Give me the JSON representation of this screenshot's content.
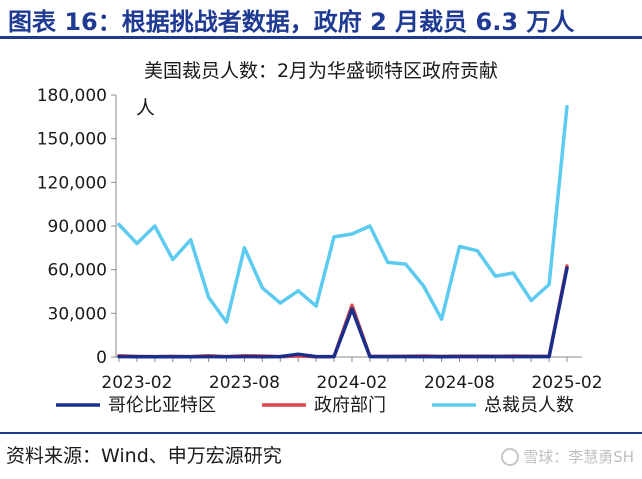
{
  "header": {
    "title": "图表 16：根据挑战者数据，政府 2 月裁员 6.3 万人"
  },
  "source": "资料来源：Wind、申万宏源研究",
  "watermark": "雪球：李慧勇SH",
  "chart_data": {
    "type": "line",
    "title": "美国裁员人数：2月为华盛顿特区政府贡献",
    "unit_label": "人",
    "x": [
      "2023-01",
      "2023-02",
      "2023-03",
      "2023-04",
      "2023-05",
      "2023-06",
      "2023-07",
      "2023-08",
      "2023-09",
      "2023-10",
      "2023-11",
      "2023-12",
      "2024-01",
      "2024-02",
      "2024-03",
      "2024-04",
      "2024-05",
      "2024-06",
      "2024-07",
      "2024-08",
      "2024-09",
      "2024-10",
      "2024-11",
      "2024-12",
      "2025-01",
      "2025-02"
    ],
    "x_tick_labels": [
      "2023-02",
      "2023-08",
      "2024-02",
      "2024-08",
      "2025-02"
    ],
    "ylim": [
      0,
      180000
    ],
    "y_ticks": [
      0,
      30000,
      60000,
      90000,
      120000,
      150000,
      180000
    ],
    "y_tick_labels": [
      "0",
      "30,000",
      "60,000",
      "90,000",
      "120,000",
      "150,000",
      "180,000"
    ],
    "grid": false,
    "legend_position": "bottom",
    "series": [
      {
        "name": "哥伦比亚特区",
        "color": "#1a2e8c",
        "values": [
          300,
          200,
          200,
          200,
          200,
          300,
          200,
          300,
          200,
          300,
          1900,
          300,
          300,
          33000,
          300,
          300,
          300,
          300,
          200,
          300,
          300,
          300,
          300,
          300,
          300,
          61000
        ]
      },
      {
        "name": "政府部门",
        "color": "#d9474b",
        "values": [
          800,
          400,
          300,
          400,
          300,
          800,
          300,
          800,
          700,
          300,
          700,
          200,
          300,
          35500,
          400,
          400,
          500,
          700,
          400,
          600,
          600,
          500,
          700,
          500,
          400,
          62500
        ]
      },
      {
        "name": "总裁员人数",
        "color": "#5ccbef",
        "values": [
          91000,
          78000,
          90000,
          67000,
          80500,
          41000,
          24000,
          75000,
          47500,
          37000,
          45500,
          35000,
          82500,
          84500,
          90000,
          65000,
          63800,
          48800,
          26000,
          75900,
          73000,
          55600,
          57700,
          38800,
          49800,
          172000
        ]
      }
    ]
  }
}
